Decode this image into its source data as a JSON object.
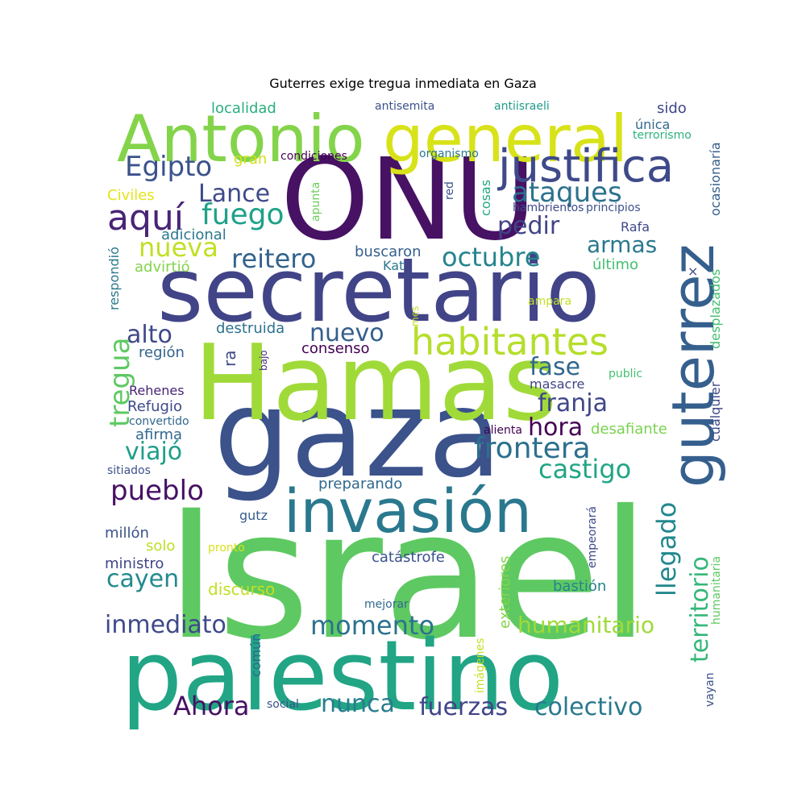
{
  "chart_data": {
    "type": "wordcloud",
    "title": "Guterres exige tregua inmediata en Gaza",
    "background": "#ffffff",
    "colormap": "viridis",
    "words": [
      {
        "text": "Israel",
        "weight": 1.0,
        "color": "#5ec962"
      },
      {
        "text": "palestino",
        "weight": 0.95,
        "color": "#21a585"
      },
      {
        "text": "gaza",
        "weight": 0.95,
        "color": "#3b528b"
      },
      {
        "text": "Hamas",
        "weight": 0.93,
        "color": "#a0da39"
      },
      {
        "text": "ONU",
        "weight": 0.92,
        "color": "#471164"
      },
      {
        "text": "secretario",
        "weight": 0.82,
        "color": "#414487"
      },
      {
        "text": "guterrez",
        "weight": 0.72,
        "color": "#355f8d"
      },
      {
        "text": "invasión",
        "weight": 0.62,
        "color": "#2a788e"
      },
      {
        "text": "general",
        "weight": 0.6,
        "color": "#d8e219"
      },
      {
        "text": "Antonio",
        "weight": 0.6,
        "color": "#84d44b"
      },
      {
        "text": "justifica",
        "weight": 0.45,
        "color": "#3e4a89"
      },
      {
        "text": "habitantes",
        "weight": 0.4,
        "color": "#b5de2b"
      },
      {
        "text": "aquí",
        "weight": 0.4,
        "color": "#482576"
      },
      {
        "text": "fuego",
        "weight": 0.34,
        "color": "#1fa188"
      },
      {
        "text": "Egipto",
        "weight": 0.3,
        "color": "#3b528b"
      },
      {
        "text": "Lance",
        "weight": 0.3,
        "color": "#3e4989"
      },
      {
        "text": "ataques",
        "weight": 0.3,
        "color": "#2c728e"
      },
      {
        "text": "pedir",
        "weight": 0.3,
        "color": "#414487"
      },
      {
        "text": "nueva",
        "weight": 0.3,
        "color": "#c2df23"
      },
      {
        "text": "reitero",
        "weight": 0.3,
        "color": "#33638d"
      },
      {
        "text": "octubre",
        "weight": 0.3,
        "color": "#25848e"
      },
      {
        "text": "armas",
        "weight": 0.28,
        "color": "#2a788e"
      },
      {
        "text": "alto",
        "weight": 0.3,
        "color": "#3e4989"
      },
      {
        "text": "nuevo",
        "weight": 0.3,
        "color": "#355f8d"
      },
      {
        "text": "tregua",
        "weight": 0.3,
        "color": "#5ec962"
      },
      {
        "text": "fase",
        "weight": 0.3,
        "color": "#31688e"
      },
      {
        "text": "franja",
        "weight": 0.3,
        "color": "#404688"
      },
      {
        "text": "viajó",
        "weight": 0.3,
        "color": "#1f9e89"
      },
      {
        "text": "hora",
        "weight": 0.3,
        "color": "#440154"
      },
      {
        "text": "frontera",
        "weight": 0.3,
        "color": "#2d708e"
      },
      {
        "text": "castigo",
        "weight": 0.3,
        "color": "#21a585"
      },
      {
        "text": "pueblo",
        "weight": 0.3,
        "color": "#471164"
      },
      {
        "text": "llegado",
        "weight": 0.3,
        "color": "#23888e"
      },
      {
        "text": "territorio",
        "weight": 0.3,
        "color": "#35b779"
      },
      {
        "text": "cayen",
        "weight": 0.3,
        "color": "#238a8d"
      },
      {
        "text": "inmediato",
        "weight": 0.3,
        "color": "#3e4989"
      },
      {
        "text": "momento",
        "weight": 0.3,
        "color": "#2c728e"
      },
      {
        "text": "humanitario",
        "weight": 0.3,
        "color": "#a0da39"
      },
      {
        "text": "Ahora",
        "weight": 0.3,
        "color": "#471164"
      },
      {
        "text": "nunca",
        "weight": 0.3,
        "color": "#287d8e"
      },
      {
        "text": "fuerzas",
        "weight": 0.3,
        "color": "#414487"
      },
      {
        "text": "colectivo",
        "weight": 0.3,
        "color": "#2a788e"
      },
      {
        "text": "localidad",
        "weight": 0.12,
        "color": "#29af7f"
      },
      {
        "text": "antisemita",
        "weight": 0.1,
        "color": "#3b528b"
      },
      {
        "text": "antiisraeli",
        "weight": 0.1,
        "color": "#1f9a8a"
      },
      {
        "text": "sido",
        "weight": 0.12,
        "color": "#404688"
      },
      {
        "text": "única",
        "weight": 0.1,
        "color": "#31688e"
      },
      {
        "text": "terrorismo",
        "weight": 0.1,
        "color": "#2db27d"
      },
      {
        "text": "ocasionaría",
        "weight": 0.1,
        "color": "#355f8d"
      },
      {
        "text": "gran",
        "weight": 0.12,
        "color": "#d0e11c"
      },
      {
        "text": "condiciones",
        "weight": 0.1,
        "color": "#440154"
      },
      {
        "text": "organismo",
        "weight": 0.1,
        "color": "#2a788e"
      },
      {
        "text": "Civiles",
        "weight": 0.12,
        "color": "#e5e419"
      },
      {
        "text": "apunta",
        "weight": 0.1,
        "color": "#6ccd5a"
      },
      {
        "text": "red",
        "weight": 0.1,
        "color": "#3b528b"
      },
      {
        "text": "cosas",
        "weight": 0.1,
        "color": "#22a884"
      },
      {
        "text": "hambrientos",
        "weight": 0.1,
        "color": "#3e4a89"
      },
      {
        "text": "principios",
        "weight": 0.1,
        "color": "#3b528b"
      },
      {
        "text": "adicional",
        "weight": 0.12,
        "color": "#2a788e"
      },
      {
        "text": "Rafa",
        "weight": 0.12,
        "color": "#3e4989"
      },
      {
        "text": "respondió",
        "weight": 0.1,
        "color": "#2a788e"
      },
      {
        "text": "advirtió",
        "weight": 0.12,
        "color": "#84d44b"
      },
      {
        "text": "buscaron",
        "weight": 0.12,
        "color": "#355f8d"
      },
      {
        "text": "Kat",
        "weight": 0.12,
        "color": "#2a788e"
      },
      {
        "text": "último",
        "weight": 0.12,
        "color": "#44bf70"
      },
      {
        "text": "×",
        "weight": 0.08,
        "color": "#3e4989"
      },
      {
        "text": "desplazados",
        "weight": 0.12,
        "color": "#44bf70"
      },
      {
        "text": "mes",
        "weight": 0.08,
        "color": "#c2df23"
      },
      {
        "text": "ampara",
        "weight": 0.1,
        "color": "#c2df23"
      },
      {
        "text": "destruida",
        "weight": 0.12,
        "color": "#2c728e"
      },
      {
        "text": "región",
        "weight": 0.12,
        "color": "#33638d"
      },
      {
        "text": "ra",
        "weight": 0.12,
        "color": "#3e4989"
      },
      {
        "text": "consenso",
        "weight": 0.12,
        "color": "#440154"
      },
      {
        "text": "bajo",
        "weight": 0.08,
        "color": "#472c7a"
      },
      {
        "text": "public",
        "weight": 0.1,
        "color": "#44bf70"
      },
      {
        "text": "cualquier",
        "weight": 0.1,
        "color": "#3e4989"
      },
      {
        "text": "Rehenes",
        "weight": 0.1,
        "color": "#482576"
      },
      {
        "text": "Refugio",
        "weight": 0.12,
        "color": "#3e4989"
      },
      {
        "text": "masacre",
        "weight": 0.1,
        "color": "#414487"
      },
      {
        "text": "convertido",
        "weight": 0.1,
        "color": "#31688e"
      },
      {
        "text": "afirma",
        "weight": 0.12,
        "color": "#31688e"
      },
      {
        "text": "alienta",
        "weight": 0.1,
        "color": "#440154"
      },
      {
        "text": "desafiante",
        "weight": 0.14,
        "color": "#7ad151"
      },
      {
        "text": "sitiados",
        "weight": 0.1,
        "color": "#3b528b"
      },
      {
        "text": "preparando",
        "weight": 0.12,
        "color": "#31688e"
      },
      {
        "text": "gutz",
        "weight": 0.1,
        "color": "#355f8d"
      },
      {
        "text": "millón",
        "weight": 0.12,
        "color": "#3b528b"
      },
      {
        "text": "solo",
        "weight": 0.12,
        "color": "#bddf26"
      },
      {
        "text": "pronto",
        "weight": 0.1,
        "color": "#d8e219"
      },
      {
        "text": "ministro",
        "weight": 0.12,
        "color": "#404688"
      },
      {
        "text": "catástrofe",
        "weight": 0.12,
        "color": "#3b528b"
      },
      {
        "text": "empeorará",
        "weight": 0.1,
        "color": "#3e4989"
      },
      {
        "text": "discurso",
        "weight": 0.14,
        "color": "#c2df23"
      },
      {
        "text": "exteriores",
        "weight": 0.12,
        "color": "#84d44b"
      },
      {
        "text": "bastión",
        "weight": 0.12,
        "color": "#25848e"
      },
      {
        "text": "humanitaria",
        "weight": 0.1,
        "color": "#5ec962"
      },
      {
        "text": "mejorar",
        "weight": 0.1,
        "color": "#31688e"
      },
      {
        "text": "común",
        "weight": 0.12,
        "color": "#31688e"
      },
      {
        "text": "imágenes",
        "weight": 0.1,
        "color": "#c2df23"
      },
      {
        "text": "social",
        "weight": 0.1,
        "color": "#3b528b"
      },
      {
        "text": "vayan",
        "weight": 0.1,
        "color": "#3b528b"
      }
    ]
  }
}
